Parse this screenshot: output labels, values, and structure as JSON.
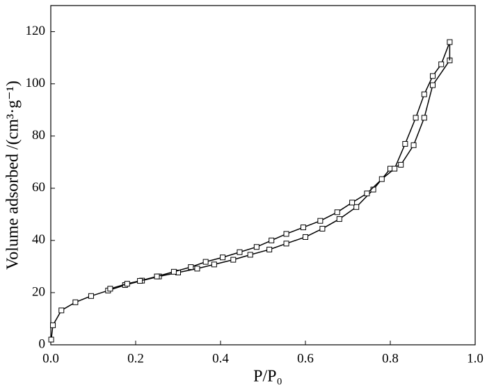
{
  "chart_data": {
    "type": "line",
    "x_label": "P/P₀",
    "y_label": "Volume adsorbed /(cm³·g⁻¹)",
    "series": [
      {
        "color": "#000000",
        "x": [
          0.001,
          0.005,
          0.025,
          0.058,
          0.095,
          0.135,
          0.175,
          0.215,
          0.255,
          0.3,
          0.345,
          0.385,
          0.43,
          0.47,
          0.515,
          0.555,
          0.6,
          0.64,
          0.68,
          0.72,
          0.76,
          0.8,
          0.825,
          0.855,
          0.88,
          0.9,
          0.94
        ],
        "values": [
          2,
          7.5,
          13.2,
          16.3,
          18.7,
          20.8,
          22.9,
          24.6,
          26.2,
          27.7,
          29.2,
          30.8,
          32.6,
          34.5,
          36.5,
          38.8,
          41.3,
          44.5,
          48.2,
          52.8,
          59.5,
          67.5,
          69,
          76.5,
          87,
          99.5,
          109
        ]
      },
      {
        "color": "#000000",
        "x": [
          0.94,
          0.92,
          0.9,
          0.88,
          0.86,
          0.835,
          0.81,
          0.78,
          0.745,
          0.71,
          0.675,
          0.635,
          0.595,
          0.555,
          0.52,
          0.485,
          0.445,
          0.405,
          0.365,
          0.33,
          0.29,
          0.25,
          0.21,
          0.18,
          0.14
        ],
        "values": [
          116,
          107.5,
          103,
          96,
          87,
          77,
          67.5,
          63.5,
          58,
          54.5,
          50.8,
          47.5,
          45,
          42.5,
          40,
          37.5,
          35.5,
          33.5,
          31.8,
          29.8,
          28,
          26.2,
          24.5,
          23.4,
          21.5
        ]
      }
    ],
    "xlim": [
      0,
      1
    ],
    "xticks": [
      {
        "value": 0,
        "label": "0.0"
      },
      0.2,
      0.4,
      0.6,
      0.8,
      {
        "value": 1,
        "label": "1.0"
      }
    ],
    "ylim": [
      0,
      130
    ],
    "yticks": [
      0,
      20,
      40,
      60,
      80,
      100,
      120
    ],
    "marker": "square"
  }
}
